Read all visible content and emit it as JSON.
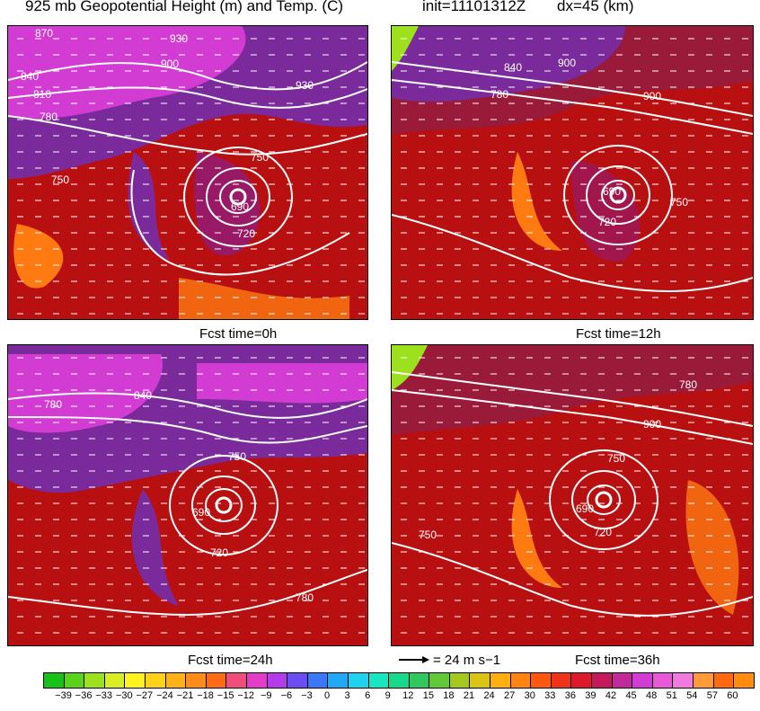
{
  "header": {
    "title": "925 mb Geopotential Height (m) and Temp. (C)",
    "init": "init=11101312Z",
    "dx": "dx=45 (km)"
  },
  "panels": [
    {
      "fcst_label": "Fcst time=0h",
      "contour_labels": [
        "870",
        "930",
        "900",
        "840",
        "810",
        "930",
        "780",
        "750",
        "750",
        "690",
        "720"
      ]
    },
    {
      "fcst_label": "Fcst time=12h",
      "contour_labels": [
        "840",
        "900",
        "780",
        "900",
        "750",
        "690",
        "720"
      ]
    },
    {
      "fcst_label": "Fcst time=24h",
      "contour_labels": [
        "840",
        "780",
        "750",
        "690",
        "720",
        "780"
      ]
    },
    {
      "fcst_label": "Fcst time=36h",
      "contour_labels": [
        "780",
        "900",
        "750",
        "690",
        "720",
        "750"
      ]
    }
  ],
  "wind_reference": {
    "label": "= 24 m s−1"
  },
  "colorbar": {
    "ticks": [
      "−39",
      "−36",
      "−33",
      "−30",
      "−27",
      "−24",
      "−21",
      "−18",
      "−15",
      "−12",
      "−9",
      "−6",
      "−3",
      "0",
      "3",
      "6",
      "9",
      "12",
      "15",
      "18",
      "21",
      "24",
      "27",
      "30",
      "33",
      "36",
      "39",
      "42",
      "45",
      "48",
      "51",
      "54",
      "57",
      "60"
    ],
    "colors": [
      "#18c218",
      "#5ad41a",
      "#9ce01e",
      "#d8ee22",
      "#fff21e",
      "#ffd21a",
      "#ffb218",
      "#ff8c16",
      "#ff6a14",
      "#f04e7a",
      "#e23cc8",
      "#b23cea",
      "#6a4ef2",
      "#3a78f6",
      "#22a8f6",
      "#1ed2f0",
      "#18e6c0",
      "#18d88a",
      "#30c85c",
      "#62c83a",
      "#a6c81e",
      "#dcc414",
      "#ffb010",
      "#ff8410",
      "#ff5810",
      "#f0341a",
      "#dc1a2a",
      "#c41a5a",
      "#c02a9a",
      "#d23cd2",
      "#e65ad8",
      "#f07ae0",
      "#ff9a3a",
      "#ff6a10",
      "#ff8c10"
    ]
  },
  "colors": {
    "warm_red": "#b81010",
    "purple": "#7a2a9a",
    "magenta": "#d23cd2",
    "orange": "#ff7a10",
    "contour": "#ffffff",
    "border": "#000000"
  }
}
